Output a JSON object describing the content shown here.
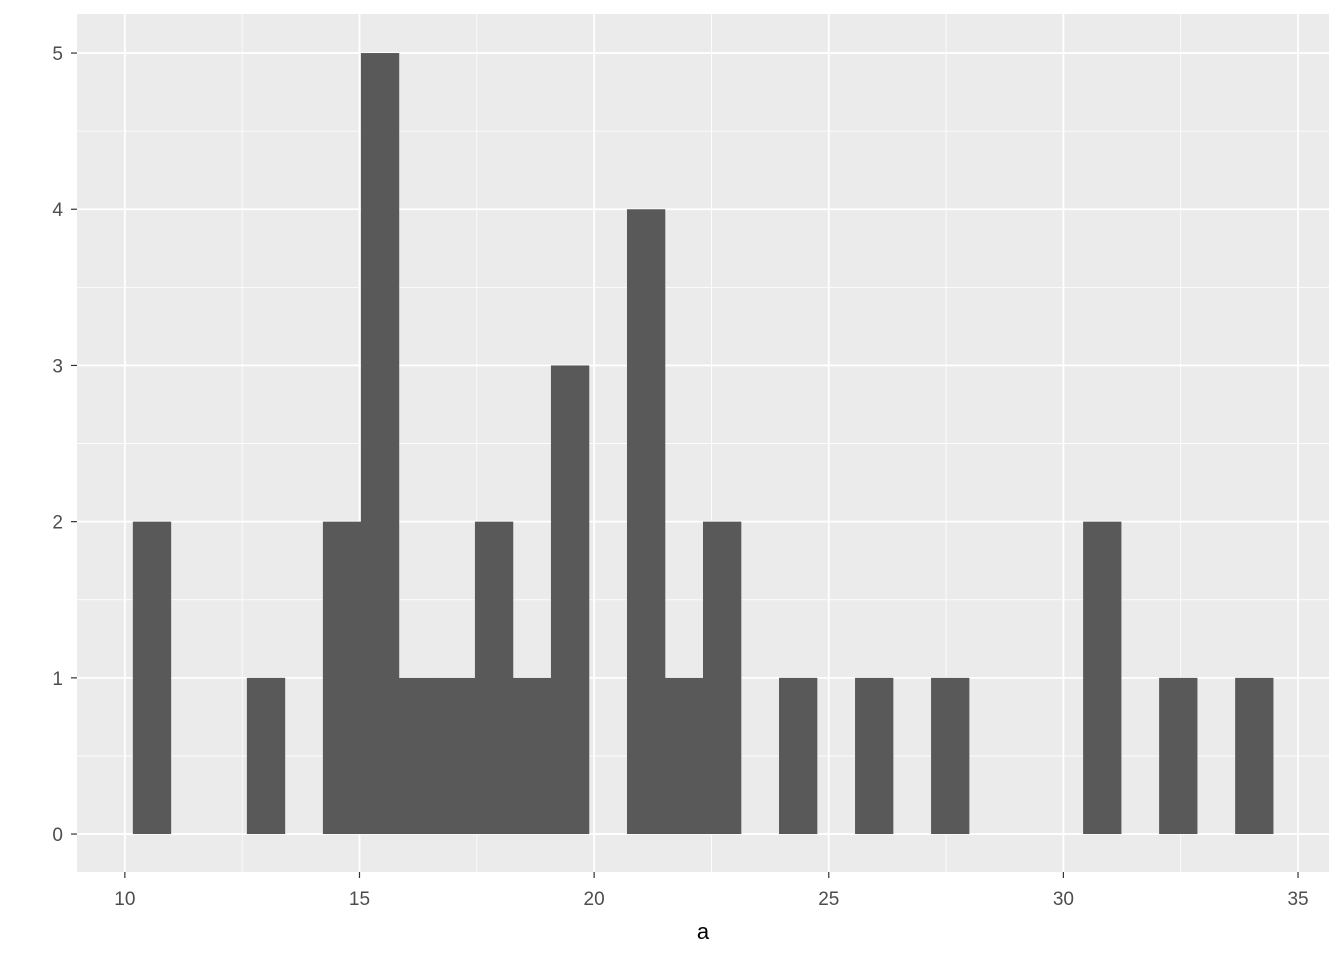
{
  "chart_data": {
    "type": "bar",
    "subtype": "histogram",
    "title": "",
    "xlabel": "a",
    "ylabel": "",
    "bin_start": 10.17,
    "bin_width": 0.81,
    "counts": [
      2,
      0,
      0,
      1,
      0,
      2,
      5,
      1,
      1,
      2,
      1,
      3,
      0,
      4,
      1,
      2,
      0,
      1,
      0,
      1,
      0,
      1,
      0,
      0,
      0,
      2,
      0,
      1,
      0,
      1
    ],
    "xlim": [
      8.98,
      35.66
    ],
    "ylim": [
      -0.243,
      5.25
    ],
    "x_ticks": [
      10,
      15,
      20,
      25,
      30,
      35
    ],
    "x_tick_labels": [
      "10",
      "15",
      "20",
      "25",
      "30",
      "35"
    ],
    "y_ticks": [
      0,
      1,
      2,
      3,
      4,
      5
    ],
    "y_tick_labels": [
      "0",
      "1",
      "2",
      "3",
      "4",
      "5"
    ],
    "grid": true,
    "colors": {
      "panel": "#EBEBEB",
      "grid": "#FFFFFF",
      "bar": "#595959",
      "text": "#4D4D4D",
      "axis_title": "#000000"
    }
  }
}
